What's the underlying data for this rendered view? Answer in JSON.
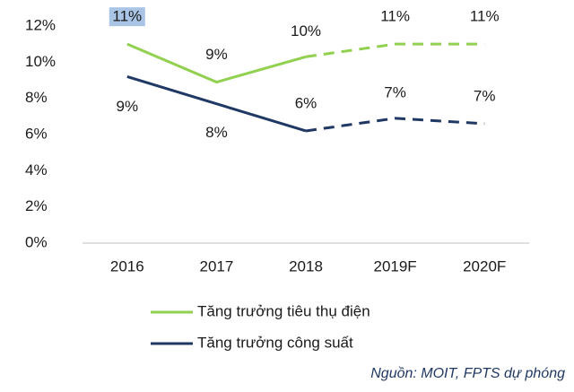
{
  "chart_data": {
    "type": "line",
    "categories": [
      "2016",
      "2017",
      "2018",
      "2019F",
      "2020F"
    ],
    "series": [
      {
        "name": "Tăng trưởng tiêu thụ điện",
        "color": "#92d050",
        "values": [
          11.0,
          8.9,
          10.3,
          11.0,
          11.0
        ],
        "value_labels": [
          "11%",
          "9%",
          "10%",
          "11%",
          "11%"
        ]
      },
      {
        "name": "Tăng trưởng công suất",
        "color": "#1f3864",
        "values": [
          9.2,
          7.7,
          6.2,
          6.9,
          6.6
        ],
        "value_labels": [
          "9%",
          "8%",
          "6%",
          "7%",
          "7%"
        ]
      }
    ],
    "dashed_from_index": 2,
    "ylim": [
      0,
      12
    ],
    "yticks": [
      {
        "value": 0,
        "label": "0%"
      },
      {
        "value": 2,
        "label": "2%"
      },
      {
        "value": 4,
        "label": "4%"
      },
      {
        "value": 6,
        "label": "6%"
      },
      {
        "value": 8,
        "label": "8%"
      },
      {
        "value": 10,
        "label": "10%"
      },
      {
        "value": 12,
        "label": "12%"
      }
    ],
    "grid": false,
    "source": "Nguồn: MOIT, FPTS dự phóng"
  }
}
